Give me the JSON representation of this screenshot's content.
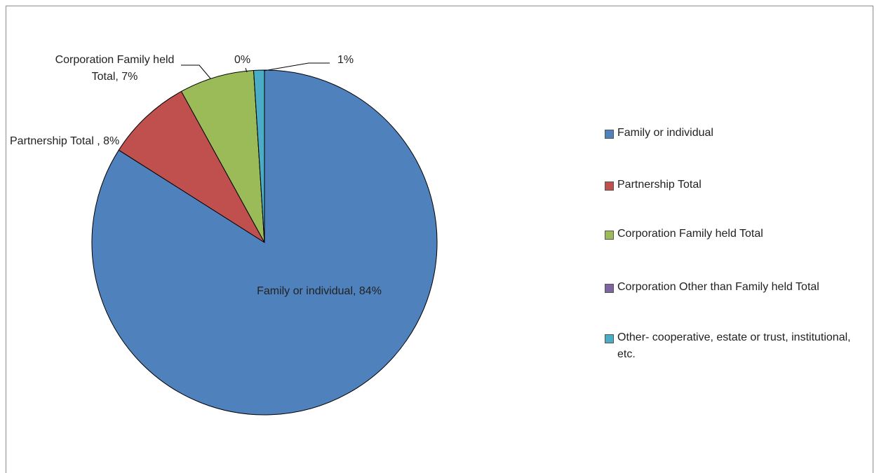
{
  "chart_data": {
    "type": "pie",
    "categories": [
      "Family or individual",
      "Partnership Total",
      "Corporation Family held Total",
      "Corporation Other than Family held Total",
      "Other- cooperative, estate or trust, institutional, etc."
    ],
    "values": [
      84,
      8,
      7,
      0,
      1
    ],
    "value_labels": [
      "Family or individual, 84%",
      "Partnership Total , 8%",
      "Corporation Family held Total, 7%",
      "0%",
      "1%"
    ],
    "colors": [
      "#4f81bd",
      "#c0504d",
      "#9bbb59",
      "#8064a2",
      "#4bacc6"
    ],
    "legend": "right"
  }
}
